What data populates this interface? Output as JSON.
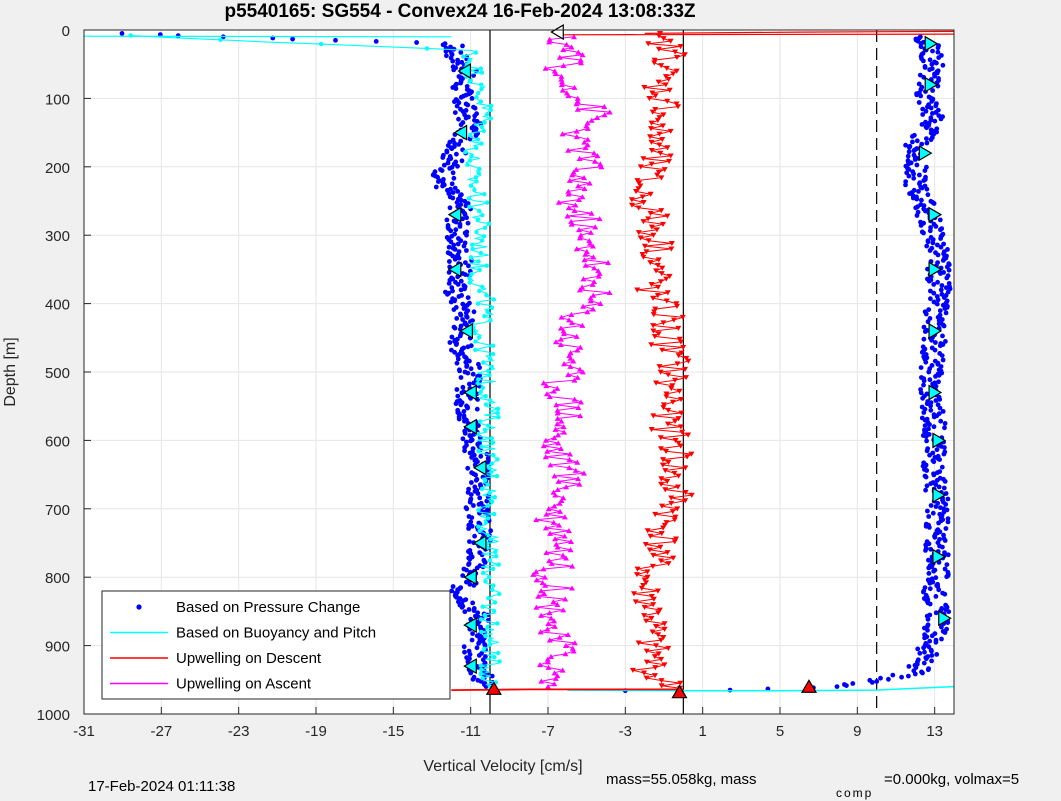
{
  "chart_data": {
    "type": "scatter",
    "title": "p5540165: SG554 - Convex24 16-Feb-2024 13:08:33Z",
    "xlabel": "Vertical Velocity [cm/s]",
    "ylabel": "Depth [m]",
    "xlim": [
      -31,
      14
    ],
    "ylim": [
      0,
      1000
    ],
    "y_reversed": true,
    "xticks": [
      -31,
      -27,
      -23,
      -19,
      -15,
      -11,
      -7,
      -3,
      1,
      5,
      9,
      13
    ],
    "yticks": [
      0,
      100,
      200,
      300,
      400,
      500,
      600,
      700,
      800,
      900,
      1000
    ],
    "grid": true,
    "legend_position": "bottom-left",
    "vertical_lines": [
      {
        "x": -10,
        "style": "solid"
      },
      {
        "x": 0,
        "style": "solid"
      },
      {
        "x": 10,
        "style": "dashed"
      }
    ],
    "series": [
      {
        "name": "Based on Pressure Change",
        "color": "#0000ff",
        "marker": "dot",
        "descent": [
          [
            -29.5,
            5
          ],
          [
            -12,
            20
          ],
          [
            -11.3,
            60
          ],
          [
            -11.5,
            100
          ],
          [
            -11,
            140
          ],
          [
            -11.8,
            180
          ],
          [
            -12.5,
            220
          ],
          [
            -11.5,
            260
          ],
          [
            -11.8,
            300
          ],
          [
            -11.5,
            340
          ],
          [
            -11.8,
            380
          ],
          [
            -11.2,
            420
          ],
          [
            -11.5,
            460
          ],
          [
            -11,
            500
          ],
          [
            -11.2,
            540
          ],
          [
            -11,
            580
          ],
          [
            -10.7,
            620
          ],
          [
            -10.5,
            660
          ],
          [
            -10.7,
            700
          ],
          [
            -10.5,
            740
          ],
          [
            -10.8,
            780
          ],
          [
            -11.5,
            820
          ],
          [
            -10.5,
            860
          ],
          [
            -10.8,
            900
          ],
          [
            -10.5,
            940
          ],
          [
            -10.2,
            960
          ]
        ],
        "ascent": [
          [
            12.5,
            10
          ],
          [
            13,
            50
          ],
          [
            12.5,
            90
          ],
          [
            13,
            130
          ],
          [
            12,
            170
          ],
          [
            12,
            220
          ],
          [
            12.5,
            260
          ],
          [
            13,
            300
          ],
          [
            13.2,
            340
          ],
          [
            13.2,
            380
          ],
          [
            13,
            420
          ],
          [
            13,
            460
          ],
          [
            12.8,
            500
          ],
          [
            12.8,
            540
          ],
          [
            13,
            580
          ],
          [
            13,
            620
          ],
          [
            13,
            660
          ],
          [
            13.2,
            700
          ],
          [
            13,
            740
          ],
          [
            13.2,
            780
          ],
          [
            13,
            820
          ],
          [
            13.2,
            860
          ],
          [
            12.8,
            900
          ],
          [
            12,
            940
          ],
          [
            8,
            960
          ],
          [
            3,
            965
          ],
          [
            -3,
            966
          ]
        ]
      },
      {
        "name": "Based on Buoyancy and Pitch",
        "color": "#00ffff",
        "marker": "circle",
        "descent": [
          [
            -29,
            8
          ],
          [
            -11,
            30
          ],
          [
            -10.7,
            80
          ],
          [
            -10.2,
            120
          ],
          [
            -10.7,
            160
          ],
          [
            -11,
            200
          ],
          [
            -10.7,
            240
          ],
          [
            -10.5,
            280
          ],
          [
            -10.5,
            320
          ],
          [
            -10.7,
            360
          ],
          [
            -10.2,
            400
          ],
          [
            -10.5,
            440
          ],
          [
            -10.2,
            480
          ],
          [
            -10.2,
            520
          ],
          [
            -10,
            560
          ],
          [
            -10.2,
            600
          ],
          [
            -10,
            640
          ],
          [
            -10,
            680
          ],
          [
            -10.2,
            720
          ],
          [
            -10,
            760
          ],
          [
            -10,
            800
          ],
          [
            -10,
            840
          ],
          [
            -10,
            880
          ],
          [
            -10,
            920
          ],
          [
            -10,
            960
          ]
        ],
        "ascent": [
          [
            -6,
            965
          ],
          [
            0,
            966
          ],
          [
            5,
            966
          ],
          [
            10,
            965
          ],
          [
            14,
            960
          ]
        ]
      },
      {
        "name": "Upwelling on Descent",
        "color": "#ff0000",
        "marker": "triangle-down",
        "points": [
          [
            -2,
            5
          ],
          [
            -1,
            20
          ],
          [
            -0.5,
            40
          ],
          [
            -1,
            60
          ],
          [
            -1.3,
            80
          ],
          [
            -1,
            100
          ],
          [
            -0.8,
            120
          ],
          [
            -1.5,
            140
          ],
          [
            -1.3,
            160
          ],
          [
            -1.5,
            180
          ],
          [
            -1.7,
            200
          ],
          [
            -2,
            220
          ],
          [
            -2.2,
            240
          ],
          [
            -1.8,
            260
          ],
          [
            -1.5,
            280
          ],
          [
            -1.5,
            300
          ],
          [
            -1.2,
            320
          ],
          [
            -1.5,
            340
          ],
          [
            -1.3,
            360
          ],
          [
            -1.7,
            380
          ],
          [
            -1.2,
            400
          ],
          [
            -0.8,
            420
          ],
          [
            -1,
            440
          ],
          [
            -0.8,
            460
          ],
          [
            -0.5,
            480
          ],
          [
            -0.5,
            500
          ],
          [
            -0.8,
            520
          ],
          [
            -0.5,
            540
          ],
          [
            -1,
            560
          ],
          [
            -0.8,
            580
          ],
          [
            -0.5,
            600
          ],
          [
            -0.3,
            620
          ],
          [
            -0.5,
            640
          ],
          [
            -0.8,
            660
          ],
          [
            -0.3,
            680
          ],
          [
            -0.5,
            700
          ],
          [
            -1,
            720
          ],
          [
            -1,
            740
          ],
          [
            -1.3,
            760
          ],
          [
            -1.5,
            780
          ],
          [
            -2,
            800
          ],
          [
            -2,
            820
          ],
          [
            -1.7,
            840
          ],
          [
            -1.5,
            860
          ],
          [
            -1.7,
            880
          ],
          [
            -1.7,
            900
          ],
          [
            -1.5,
            920
          ],
          [
            -1.8,
            940
          ],
          [
            -0.2,
            966
          ]
        ]
      },
      {
        "name": "Upwelling on Ascent",
        "color": "#ff00ff",
        "marker": "triangle-up",
        "points": [
          [
            -6.5,
            10
          ],
          [
            -5.5,
            40
          ],
          [
            -7,
            60
          ],
          [
            -5.5,
            80
          ],
          [
            -5.5,
            100
          ],
          [
            -4.5,
            120
          ],
          [
            -5,
            140
          ],
          [
            -5.8,
            160
          ],
          [
            -5,
            180
          ],
          [
            -5,
            200
          ],
          [
            -5.8,
            220
          ],
          [
            -5.5,
            240
          ],
          [
            -5.8,
            260
          ],
          [
            -5,
            280
          ],
          [
            -5.5,
            300
          ],
          [
            -4.8,
            320
          ],
          [
            -4.5,
            340
          ],
          [
            -5,
            360
          ],
          [
            -4.5,
            380
          ],
          [
            -5,
            400
          ],
          [
            -5.5,
            420
          ],
          [
            -5.8,
            440
          ],
          [
            -6,
            460
          ],
          [
            -5.5,
            480
          ],
          [
            -6,
            500
          ],
          [
            -6.5,
            520
          ],
          [
            -6,
            540
          ],
          [
            -5.8,
            560
          ],
          [
            -6.3,
            580
          ],
          [
            -6.8,
            600
          ],
          [
            -6.5,
            620
          ],
          [
            -6,
            640
          ],
          [
            -6,
            660
          ],
          [
            -6.2,
            680
          ],
          [
            -6.5,
            700
          ],
          [
            -6.8,
            720
          ],
          [
            -6,
            740
          ],
          [
            -6.2,
            760
          ],
          [
            -6.5,
            780
          ],
          [
            -7,
            800
          ],
          [
            -6.5,
            820
          ],
          [
            -6.8,
            840
          ],
          [
            -6.5,
            860
          ],
          [
            -7,
            880
          ],
          [
            -6.3,
            900
          ],
          [
            -6.5,
            920
          ],
          [
            -6.8,
            940
          ],
          [
            -7,
            960
          ]
        ]
      }
    ],
    "markers": [
      {
        "x": -6.5,
        "y": 3,
        "shape": "triangle-left",
        "color": "#ffffff"
      },
      {
        "x": -11.3,
        "y": 60,
        "shape": "triangle-left",
        "color": "#00ffff"
      },
      {
        "x": -11.5,
        "y": 150,
        "shape": "triangle-left",
        "color": "#00ffff"
      },
      {
        "x": -11.8,
        "y": 270,
        "shape": "triangle-left",
        "color": "#00ffff"
      },
      {
        "x": -11.8,
        "y": 350,
        "shape": "triangle-left",
        "color": "#00ffff"
      },
      {
        "x": -11.2,
        "y": 440,
        "shape": "triangle-left",
        "color": "#00ffff"
      },
      {
        "x": -11,
        "y": 530,
        "shape": "triangle-left",
        "color": "#00ffff"
      },
      {
        "x": -11,
        "y": 580,
        "shape": "triangle-left",
        "color": "#00ffff"
      },
      {
        "x": -10.5,
        "y": 640,
        "shape": "triangle-left",
        "color": "#00ffff"
      },
      {
        "x": -10.5,
        "y": 750,
        "shape": "triangle-left",
        "color": "#00ffff"
      },
      {
        "x": -11,
        "y": 800,
        "shape": "triangle-left",
        "color": "#00ffff"
      },
      {
        "x": -11,
        "y": 870,
        "shape": "triangle-left",
        "color": "#00ffff"
      },
      {
        "x": -11,
        "y": 930,
        "shape": "triangle-left",
        "color": "#00ffff"
      },
      {
        "x": 12.8,
        "y": 20,
        "shape": "triangle-right",
        "color": "#00ffff"
      },
      {
        "x": 12.8,
        "y": 80,
        "shape": "triangle-right",
        "color": "#00ffff"
      },
      {
        "x": 12.5,
        "y": 180,
        "shape": "triangle-right",
        "color": "#00ffff"
      },
      {
        "x": 13,
        "y": 270,
        "shape": "triangle-right",
        "color": "#00ffff"
      },
      {
        "x": 13,
        "y": 350,
        "shape": "triangle-right",
        "color": "#00ffff"
      },
      {
        "x": 13,
        "y": 440,
        "shape": "triangle-right",
        "color": "#00ffff"
      },
      {
        "x": 13,
        "y": 530,
        "shape": "triangle-right",
        "color": "#00ffff"
      },
      {
        "x": 13.2,
        "y": 600,
        "shape": "triangle-right",
        "color": "#00ffff"
      },
      {
        "x": 13.2,
        "y": 680,
        "shape": "triangle-right",
        "color": "#00ffff"
      },
      {
        "x": 13.2,
        "y": 770,
        "shape": "triangle-right",
        "color": "#00ffff"
      },
      {
        "x": 13.5,
        "y": 860,
        "shape": "triangle-right",
        "color": "#00ffff"
      },
      {
        "x": -9.8,
        "y": 963,
        "shape": "triangle-up",
        "color": "#ff0000"
      },
      {
        "x": -0.2,
        "y": 968,
        "shape": "triangle-up",
        "color": "#ff0000"
      },
      {
        "x": 6.5,
        "y": 960,
        "shape": "triangle-up",
        "color": "#ff0000"
      }
    ]
  },
  "footer": {
    "left": "17-Feb-2024 01:11:38",
    "mid_pre": "mass=55.058kg, mass",
    "mid_sub": "comp",
    "mid_post": "=0.000kg, volmax=5"
  }
}
